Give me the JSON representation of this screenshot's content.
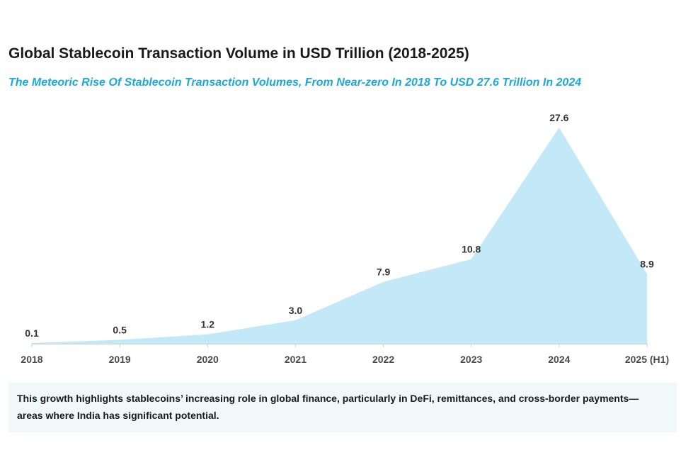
{
  "chart_data": {
    "type": "area",
    "title": "Global Stablecoin Transaction Volume in USD Trillion (2018-2025)",
    "subtitle": "The Meteoric Rise Of Stablecoin Transaction Volumes, From Near-zero In 2018 To USD 27.6 Trillion In 2024",
    "categories": [
      "2018",
      "2019",
      "2020",
      "2021",
      "2022",
      "2023",
      "2024",
      "2025 (H1)"
    ],
    "values": [
      0.1,
      0.5,
      1.2,
      3.0,
      7.9,
      10.8,
      27.6,
      8.9
    ],
    "value_labels": [
      "0.1",
      "0.5",
      "1.2",
      "3.0",
      "7.9",
      "10.8",
      "27.6",
      "8.9"
    ],
    "ylim": [
      0,
      27.6
    ],
    "xlabel": "",
    "ylabel": "",
    "grid": false,
    "fill_color": "#c3e8f8",
    "axis_color": "#cfcfcf"
  },
  "footnote": {
    "line1": "This growth highlights stablecoins’ increasing role in global finance, particularly in DeFi, remittances, and cross-border payments—",
    "line2": "areas where India has significant potential."
  }
}
